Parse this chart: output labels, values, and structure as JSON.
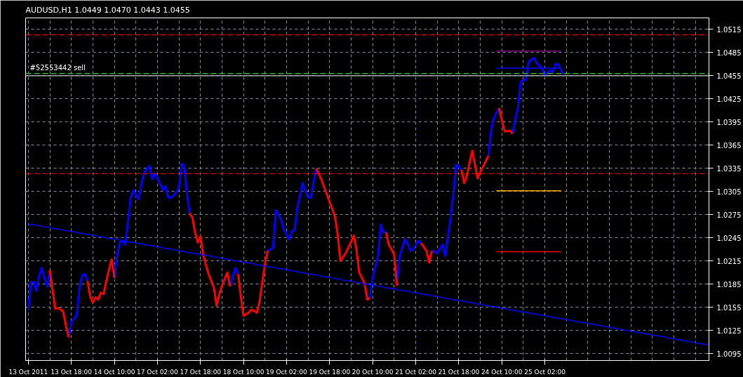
{
  "chart_data": {
    "type": "line",
    "title": "AUDUSD,H1  1.0449 1.0470 1.0443 1.0455",
    "categories": [
      "13 Oct 2011",
      null,
      null,
      null,
      null,
      null,
      null,
      null,
      null,
      null,
      null,
      null,
      null,
      null,
      null,
      null,
      "13 Oct 18:00",
      null,
      null,
      null,
      null,
      null,
      null,
      null,
      null,
      null,
      null,
      null,
      null,
      null,
      null,
      null,
      "14 Oct 10:00",
      null,
      null,
      null,
      null,
      null,
      null,
      null,
      null,
      null,
      null,
      null,
      null,
      null,
      null,
      null,
      "17 Oct 02:00",
      null,
      null,
      null,
      null,
      null,
      null,
      null,
      null,
      null,
      null,
      null,
      null,
      null,
      null,
      null,
      "17 Oct 18:00",
      null,
      null,
      null,
      null,
      null,
      null,
      null,
      null,
      null,
      null,
      null,
      null,
      null,
      null,
      null,
      "18 Oct 10:00",
      null,
      null,
      null,
      null,
      null,
      null,
      null,
      null,
      null,
      null,
      null,
      null,
      null,
      null,
      null,
      "19 Oct 02:00",
      null,
      null,
      null,
      null,
      null,
      null,
      null,
      null,
      null,
      null,
      null,
      null,
      null,
      null,
      null,
      "19 Oct 18:00",
      null,
      null,
      null,
      null,
      null,
      null,
      null,
      null,
      null,
      null,
      null,
      null,
      null,
      null,
      null,
      "20 Oct 10:00",
      null,
      null,
      null,
      null,
      null,
      null,
      null,
      null,
      null,
      null,
      null,
      null,
      null,
      null,
      null,
      "21 Oct 02:00",
      null,
      null,
      null,
      null,
      null,
      null,
      null,
      null,
      null,
      null,
      null,
      null,
      null,
      null,
      null,
      "21 Oct 18:00",
      null,
      null,
      null,
      null,
      null,
      null,
      null,
      null,
      null,
      null,
      null,
      null,
      null,
      null,
      null,
      "24 Oct 10:00",
      null,
      null,
      null,
      null,
      null,
      null,
      null,
      null,
      null,
      null,
      null,
      null,
      null,
      null,
      null,
      "25 Oct 02:00",
      null,
      null,
      null,
      null,
      null,
      null,
      null,
      null,
      null,
      null,
      null,
      null,
      null,
      null,
      null,
      null,
      null,
      null,
      null,
      null,
      null,
      null,
      null,
      null,
      null,
      null,
      null,
      null,
      null,
      null,
      null,
      null,
      null,
      null,
      null,
      null,
      null,
      null,
      null,
      null,
      null,
      null,
      null,
      null,
      null,
      null,
      null,
      null,
      null,
      null,
      null,
      null,
      null,
      null,
      null,
      null,
      null,
      null,
      null,
      null,
      null
    ],
    "series": [
      {
        "color": "#0000ff",
        "values": [
          1.0152,
          1.0187,
          1.0188,
          1.0176,
          1.0195,
          1.0206,
          1.0193,
          1.0182,
          1.0203,
          null,
          null,
          null,
          null,
          null,
          null,
          1.0116,
          1.0136,
          1.014,
          1.0144,
          1.018,
          1.0196,
          1.0198,
          1.0189,
          null,
          null,
          null,
          null,
          null,
          null,
          null,
          null,
          null,
          1.0193,
          1.0222,
          1.0239,
          1.0241,
          1.0236,
          1.0264,
          1.0295,
          1.0307,
          1.0301,
          1.0295,
          1.0314,
          1.0329,
          1.0334,
          1.0338,
          1.0321,
          1.0328,
          1.0322,
          1.0315,
          1.0307,
          1.0312,
          1.0297,
          1.0297,
          1.03,
          1.0304,
          1.031,
          1.0341,
          1.0338,
          1.0301,
          1.0277,
          null,
          null,
          null,
          null,
          null,
          null,
          null,
          null,
          null,
          null,
          null,
          null,
          null,
          null,
          1.0182,
          1.0194,
          1.0206,
          1.0198,
          null,
          null,
          null,
          null,
          null,
          null,
          null,
          null,
          null,
          null,
          1.0228,
          1.023,
          1.0232,
          1.0281,
          1.0275,
          1.0268,
          1.0255,
          1.0249,
          1.0243,
          1.0254,
          1.0255,
          1.0284,
          1.03,
          1.0316,
          1.0306,
          1.0297,
          1.0297,
          1.0316,
          1.0335,
          null,
          null,
          null,
          null,
          null,
          null,
          null,
          null,
          null,
          null,
          null,
          null,
          null,
          null,
          null,
          null,
          null,
          null,
          null,
          1.0167,
          1.0193,
          1.0207,
          1.0221,
          1.0262,
          1.0252,
          1.0252,
          null,
          null,
          null,
          1.0183,
          1.0221,
          1.0232,
          1.0243,
          1.0238,
          1.0228,
          1.023,
          1.0236,
          1.0241,
          1.0238,
          null,
          null,
          null,
          1.0228,
          1.0227,
          1.0225,
          1.0231,
          1.0236,
          1.0221,
          1.0247,
          1.0272,
          1.0301,
          1.034,
          1.0337,
          1.0333,
          null,
          null,
          null,
          null,
          null,
          null,
          null,
          null,
          null,
          1.0351,
          1.0383,
          1.04,
          1.0407,
          1.0413,
          null,
          null,
          null,
          null,
          1.038,
          1.0398,
          1.0413,
          1.0447,
          1.0449,
          1.045,
          1.0473,
          1.0476,
          1.0478,
          1.0471,
          1.0468,
          1.0464,
          1.0456,
          1.0459,
          1.0462,
          1.046,
          1.047,
          1.047,
          1.0462,
          1.0457,
          null,
          null,
          null,
          null,
          null,
          null,
          null,
          null,
          null,
          null,
          null,
          null,
          null,
          null,
          null,
          null,
          null,
          null,
          null,
          null,
          null,
          null,
          null,
          null,
          null,
          null,
          null,
          null,
          null,
          null,
          null,
          null,
          null,
          null,
          null,
          null,
          null,
          null,
          null,
          null,
          null,
          null,
          null,
          null,
          null,
          null,
          null,
          null,
          null,
          null,
          null,
          null,
          null,
          null
        ]
      },
      {
        "color": "#ff0000",
        "values": [
          null,
          null,
          null,
          null,
          null,
          null,
          null,
          null,
          1.0203,
          1.0178,
          1.0153,
          1.0154,
          1.0152,
          1.0149,
          1.0131,
          1.0116,
          null,
          null,
          null,
          null,
          null,
          null,
          1.0189,
          1.0169,
          1.0161,
          1.0168,
          1.0165,
          1.0174,
          1.0172,
          1.0189,
          1.0204,
          1.0217,
          1.0193,
          null,
          null,
          null,
          null,
          null,
          null,
          null,
          null,
          null,
          null,
          null,
          null,
          null,
          null,
          null,
          null,
          null,
          null,
          null,
          null,
          null,
          null,
          null,
          null,
          null,
          null,
          null,
          1.0277,
          1.0271,
          1.0252,
          1.0239,
          1.0247,
          1.0223,
          1.021,
          1.0198,
          1.0189,
          1.018,
          1.0157,
          1.0172,
          1.0183,
          1.0192,
          1.02,
          1.0182,
          null,
          null,
          1.0198,
          1.0169,
          1.0144,
          1.0146,
          1.0148,
          1.0152,
          1.015,
          1.0148,
          1.0163,
          1.0188,
          1.0212,
          1.0228,
          null,
          null,
          null,
          null,
          null,
          null,
          null,
          null,
          null,
          null,
          null,
          null,
          null,
          null,
          null,
          null,
          null,
          1.0335,
          1.0328,
          1.032,
          1.031,
          1.0301,
          1.0291,
          1.0282,
          1.0272,
          1.0249,
          1.0215,
          1.022,
          1.0225,
          1.0233,
          1.024,
          1.0248,
          1.0229,
          1.02,
          1.0193,
          1.0186,
          1.0165,
          1.0167,
          null,
          null,
          null,
          null,
          null,
          1.0252,
          1.0236,
          1.023,
          1.0223,
          1.0183,
          null,
          null,
          null,
          null,
          null,
          null,
          null,
          null,
          1.0238,
          1.0233,
          1.0228,
          1.0213,
          1.0228,
          null,
          null,
          null,
          null,
          null,
          null,
          null,
          null,
          null,
          null,
          1.0333,
          1.0316,
          1.0325,
          1.0342,
          1.0358,
          1.034,
          1.0322,
          1.033,
          1.0337,
          1.0344,
          1.0351,
          null,
          null,
          null,
          1.0413,
          1.0398,
          1.0383,
          1.0383,
          1.0384,
          1.038,
          null,
          null,
          null,
          null,
          null,
          null,
          null,
          null,
          null,
          null,
          null,
          null,
          null,
          null,
          null,
          null,
          null,
          null,
          null,
          null,
          null,
          null,
          null,
          null,
          null,
          null,
          null,
          null,
          null,
          null,
          null,
          null,
          null,
          null,
          null,
          null,
          null,
          null,
          null,
          null,
          null,
          null,
          null,
          null,
          null,
          null,
          null,
          null,
          null,
          null,
          null,
          null,
          null,
          null,
          null,
          null,
          null,
          null,
          null,
          null,
          null,
          null,
          null,
          null,
          null,
          null,
          null,
          null,
          null,
          null,
          null,
          null,
          null
        ]
      },
      {
        "color": "#0000ff",
        "values": [
          1.0263,
          1.0262,
          1.0262,
          1.0261,
          1.0261,
          1.026,
          1.0259,
          1.0259,
          1.0258,
          1.0257,
          1.0257,
          1.0256,
          1.0256,
          1.0255,
          1.0254,
          1.0254,
          1.0253,
          1.0253,
          1.0252,
          1.0251,
          1.0251,
          1.025,
          1.0249,
          1.0249,
          1.0248,
          1.0248,
          1.0247,
          1.0246,
          1.0246,
          1.0245,
          1.0244,
          1.0244,
          1.0243,
          1.0243,
          1.0242,
          1.0241,
          1.0241,
          1.024,
          1.0239,
          1.0239,
          1.0238,
          1.0238,
          1.0237,
          1.0236,
          1.0236,
          1.0235,
          1.0235,
          1.0234,
          1.0233,
          1.0233,
          1.0232,
          1.0231,
          1.0231,
          1.023,
          1.023,
          1.0229,
          1.0228,
          1.0228,
          1.0227,
          1.0226,
          1.0226,
          1.0225,
          1.0225,
          1.0224,
          1.0223,
          1.0223,
          1.0222,
          1.0222,
          1.0221,
          1.022,
          1.022,
          1.0219,
          1.0218,
          1.0218,
          1.0217,
          1.0217,
          1.0216,
          1.0215,
          1.0215,
          1.0214,
          1.0213,
          1.0213,
          1.0212,
          1.0212,
          1.0211,
          1.021,
          1.021,
          1.0209,
          1.0208,
          1.0208,
          1.0207,
          1.0207,
          1.0206,
          1.0205,
          1.0205,
          1.0204,
          1.0204,
          1.0203,
          1.0202,
          1.0202,
          1.0201,
          1.02,
          1.02,
          1.0199,
          1.0198,
          1.0198,
          1.0197,
          1.0197,
          1.0196,
          1.0195,
          1.0195,
          1.0194,
          1.0194,
          1.0193,
          1.0192,
          1.0192,
          1.0191,
          1.019,
          1.019,
          1.0189,
          1.0189,
          1.0188,
          1.0187,
          1.0187,
          1.0186,
          1.0185,
          1.0185,
          1.0184,
          1.0184,
          1.0183,
          1.0182,
          1.0182,
          1.0181,
          1.018,
          1.018,
          1.0179,
          1.0179,
          1.0178,
          1.0177,
          1.0177,
          1.0176,
          1.0176,
          1.0175,
          1.0174,
          1.0174,
          1.0173,
          1.0172,
          1.0172,
          1.0171,
          1.0171,
          1.017,
          1.0169,
          1.0169,
          1.0168,
          1.0167,
          1.0167,
          1.0166,
          1.0166,
          1.0165,
          1.0164,
          1.0164,
          1.0163,
          1.0163,
          1.0162,
          1.0161,
          1.0161,
          1.016,
          1.0159,
          1.0159,
          1.0158,
          1.0157,
          1.0157,
          1.0156,
          1.0156,
          1.0155,
          1.0154,
          1.0154,
          1.0153,
          1.0153,
          1.0152,
          1.0151,
          1.0151,
          1.015,
          1.0149,
          1.0149,
          1.0148,
          1.0148,
          1.0147,
          1.0146,
          1.0146,
          1.0145,
          1.0145,
          1.0144,
          1.0143,
          1.0143,
          1.0142,
          1.0141,
          1.0141,
          1.014,
          1.014,
          1.0139,
          1.0138,
          1.0138,
          1.0137,
          1.0136,
          1.0136,
          1.0135,
          1.0135,
          1.0134,
          1.0133,
          1.0133,
          1.0132,
          1.0132,
          1.0131,
          1.013,
          1.013,
          1.0129,
          1.0128,
          1.0128,
          1.0127,
          1.0126,
          1.0126,
          1.0125,
          1.0125,
          1.0124,
          1.0123,
          1.0123,
          1.0122,
          1.0122,
          1.0121,
          1.012,
          1.012,
          1.0119,
          1.0118,
          1.0118,
          1.0117,
          1.0117,
          1.0116,
          1.0115,
          1.0115,
          1.0114,
          1.0113,
          1.0113,
          1.0112,
          1.0112,
          1.0111,
          1.011,
          1.011,
          1.0109,
          1.0108,
          1.0108,
          1.0107,
          1.0107,
          1.0106
        ]
      },
      {
        "color": "#800080",
        "values": [
          null,
          null,
          null,
          null,
          null,
          null,
          null,
          null,
          null,
          null,
          null,
          null,
          null,
          null,
          null,
          null,
          null,
          null,
          null,
          null,
          null,
          null,
          null,
          null,
          null,
          null,
          null,
          null,
          null,
          null,
          null,
          null,
          null,
          null,
          null,
          null,
          null,
          null,
          null,
          null,
          null,
          null,
          null,
          null,
          null,
          null,
          null,
          null,
          null,
          null,
          null,
          null,
          null,
          null,
          null,
          null,
          null,
          null,
          null,
          null,
          null,
          null,
          null,
          null,
          null,
          null,
          null,
          null,
          null,
          null,
          null,
          null,
          null,
          null,
          null,
          null,
          null,
          null,
          null,
          null,
          null,
          null,
          null,
          null,
          null,
          null,
          null,
          null,
          null,
          null,
          null,
          null,
          null,
          null,
          null,
          null,
          null,
          null,
          null,
          null,
          null,
          null,
          null,
          null,
          null,
          null,
          null,
          null,
          null,
          null,
          null,
          null,
          null,
          null,
          null,
          null,
          null,
          null,
          null,
          null,
          null,
          null,
          null,
          null,
          null,
          null,
          null,
          null,
          null,
          null,
          null,
          null,
          null,
          null,
          null,
          null,
          null,
          null,
          null,
          null,
          null,
          null,
          null,
          null,
          null,
          null,
          null,
          null,
          null,
          null,
          null,
          null,
          null,
          null,
          null,
          null,
          null,
          null,
          null,
          null,
          null,
          null,
          null,
          null,
          null,
          null,
          null,
          null,
          null,
          null,
          null,
          null,
          null,
          null,
          1.0487,
          1.0487,
          1.0487,
          1.0487,
          1.0487,
          1.0487,
          1.0487,
          1.0487,
          1.0487,
          1.0487,
          1.0487,
          1.0487,
          1.0487,
          1.0487,
          1.0487,
          1.0487,
          1.0487,
          1.0487,
          1.0487,
          1.0487,
          1.0487,
          1.0487,
          1.0487,
          1.0487,
          1.0487,
          null,
          null,
          null,
          null,
          null,
          null,
          null,
          null,
          null,
          null,
          null,
          null,
          null,
          null,
          null,
          null,
          null,
          null,
          null,
          null,
          null,
          null,
          null,
          null,
          null,
          null,
          null,
          null,
          null,
          null,
          null,
          null,
          null,
          null,
          null,
          null,
          null,
          null,
          null,
          null,
          null,
          null,
          null,
          null,
          null,
          null,
          null,
          null,
          null,
          null,
          null,
          null,
          null,
          null,
          null
        ]
      },
      {
        "color": "#0000ff",
        "values": [
          null,
          null,
          null,
          null,
          null,
          null,
          null,
          null,
          null,
          null,
          null,
          null,
          null,
          null,
          null,
          null,
          null,
          null,
          null,
          null,
          null,
          null,
          null,
          null,
          null,
          null,
          null,
          null,
          null,
          null,
          null,
          null,
          null,
          null,
          null,
          null,
          null,
          null,
          null,
          null,
          null,
          null,
          null,
          null,
          null,
          null,
          null,
          null,
          null,
          null,
          null,
          null,
          null,
          null,
          null,
          null,
          null,
          null,
          null,
          null,
          null,
          null,
          null,
          null,
          null,
          null,
          null,
          null,
          null,
          null,
          null,
          null,
          null,
          null,
          null,
          null,
          null,
          null,
          null,
          null,
          null,
          null,
          null,
          null,
          null,
          null,
          null,
          null,
          null,
          null,
          null,
          null,
          null,
          null,
          null,
          null,
          null,
          null,
          null,
          null,
          null,
          null,
          null,
          null,
          null,
          null,
          null,
          null,
          null,
          null,
          null,
          null,
          null,
          null,
          null,
          null,
          null,
          null,
          null,
          null,
          null,
          null,
          null,
          null,
          null,
          null,
          null,
          null,
          null,
          null,
          null,
          null,
          null,
          null,
          null,
          null,
          null,
          null,
          null,
          null,
          null,
          null,
          null,
          null,
          null,
          null,
          null,
          null,
          null,
          null,
          null,
          null,
          null,
          null,
          null,
          null,
          null,
          null,
          null,
          null,
          null,
          null,
          null,
          null,
          null,
          null,
          null,
          null,
          null,
          null,
          null,
          null,
          null,
          null,
          1.0465,
          1.0465,
          1.0465,
          1.0465,
          1.0465,
          1.0465,
          1.0465,
          1.0465,
          1.0465,
          1.0465,
          1.0465,
          1.0465,
          1.0465,
          1.0465,
          1.0465,
          1.0465,
          1.0465,
          1.0465,
          1.0465,
          1.0465,
          1.0465,
          1.0465,
          1.0465,
          1.0465,
          1.0465,
          null,
          null,
          null,
          null,
          null,
          null,
          null,
          null,
          null,
          null,
          null,
          null,
          null,
          null,
          null,
          null,
          null,
          null,
          null,
          null,
          null,
          null,
          null,
          null,
          null,
          null,
          null,
          null,
          null,
          null,
          null,
          null,
          null,
          null,
          null,
          null,
          null,
          null,
          null,
          null,
          null,
          null,
          null,
          null,
          null,
          null,
          null,
          null,
          null,
          null,
          null,
          null,
          null,
          null,
          null
        ]
      },
      {
        "color": "#ffa500",
        "values": [
          null,
          null,
          null,
          null,
          null,
          null,
          null,
          null,
          null,
          null,
          null,
          null,
          null,
          null,
          null,
          null,
          null,
          null,
          null,
          null,
          null,
          null,
          null,
          null,
          null,
          null,
          null,
          null,
          null,
          null,
          null,
          null,
          null,
          null,
          null,
          null,
          null,
          null,
          null,
          null,
          null,
          null,
          null,
          null,
          null,
          null,
          null,
          null,
          null,
          null,
          null,
          null,
          null,
          null,
          null,
          null,
          null,
          null,
          null,
          null,
          null,
          null,
          null,
          null,
          null,
          null,
          null,
          null,
          null,
          null,
          null,
          null,
          null,
          null,
          null,
          null,
          null,
          null,
          null,
          null,
          null,
          null,
          null,
          null,
          null,
          null,
          null,
          null,
          null,
          null,
          null,
          null,
          null,
          null,
          null,
          null,
          null,
          null,
          null,
          null,
          null,
          null,
          null,
          null,
          null,
          null,
          null,
          null,
          null,
          null,
          null,
          null,
          null,
          null,
          null,
          null,
          null,
          null,
          null,
          null,
          null,
          null,
          null,
          null,
          null,
          null,
          null,
          null,
          null,
          null,
          null,
          null,
          null,
          null,
          null,
          null,
          null,
          null,
          null,
          null,
          null,
          null,
          null,
          null,
          null,
          null,
          null,
          null,
          null,
          null,
          null,
          null,
          null,
          null,
          null,
          null,
          null,
          null,
          null,
          null,
          null,
          null,
          null,
          null,
          null,
          null,
          null,
          null,
          null,
          null,
          null,
          null,
          null,
          null,
          1.0306,
          1.0306,
          1.0306,
          1.0306,
          1.0306,
          1.0306,
          1.0306,
          1.0306,
          1.0306,
          1.0306,
          1.0306,
          1.0306,
          1.0306,
          1.0306,
          1.0306,
          1.0306,
          1.0306,
          1.0306,
          1.0306,
          1.0306,
          1.0306,
          1.0306,
          1.0306,
          1.0306,
          1.0306,
          null,
          null,
          null,
          null,
          null,
          null,
          null,
          null,
          null,
          null,
          null,
          null,
          null,
          null,
          null,
          null,
          null,
          null,
          null,
          null,
          null,
          null,
          null,
          null,
          null,
          null,
          null,
          null,
          null,
          null,
          null,
          null,
          null,
          null,
          null,
          null,
          null,
          null,
          null,
          null,
          null,
          null,
          null,
          null,
          null,
          null,
          null,
          null,
          null,
          null,
          null,
          null,
          null,
          null,
          null
        ]
      },
      {
        "color": "#ff0000",
        "values": [
          null,
          null,
          null,
          null,
          null,
          null,
          null,
          null,
          null,
          null,
          null,
          null,
          null,
          null,
          null,
          null,
          null,
          null,
          null,
          null,
          null,
          null,
          null,
          null,
          null,
          null,
          null,
          null,
          null,
          null,
          null,
          null,
          null,
          null,
          null,
          null,
          null,
          null,
          null,
          null,
          null,
          null,
          null,
          null,
          null,
          null,
          null,
          null,
          null,
          null,
          null,
          null,
          null,
          null,
          null,
          null,
          null,
          null,
          null,
          null,
          null,
          null,
          null,
          null,
          null,
          null,
          null,
          null,
          null,
          null,
          null,
          null,
          null,
          null,
          null,
          null,
          null,
          null,
          null,
          null,
          null,
          null,
          null,
          null,
          null,
          null,
          null,
          null,
          null,
          null,
          null,
          null,
          null,
          null,
          null,
          null,
          null,
          null,
          null,
          null,
          null,
          null,
          null,
          null,
          null,
          null,
          null,
          null,
          null,
          null,
          null,
          null,
          null,
          null,
          null,
          null,
          null,
          null,
          null,
          null,
          null,
          null,
          null,
          null,
          null,
          null,
          null,
          null,
          null,
          null,
          null,
          null,
          null,
          null,
          null,
          null,
          null,
          null,
          null,
          null,
          null,
          null,
          null,
          null,
          null,
          null,
          null,
          null,
          null,
          null,
          null,
          null,
          null,
          null,
          null,
          null,
          null,
          null,
          null,
          null,
          null,
          null,
          null,
          null,
          null,
          null,
          null,
          null,
          null,
          null,
          null,
          null,
          null,
          null,
          1.0227,
          1.0227,
          1.0227,
          1.0227,
          1.0227,
          1.0227,
          1.0227,
          1.0227,
          1.0227,
          1.0227,
          1.0227,
          1.0227,
          1.0227,
          1.0227,
          1.0227,
          1.0227,
          1.0227,
          1.0227,
          1.0227,
          1.0227,
          1.0227,
          1.0227,
          1.0227,
          1.0227,
          1.0227,
          null,
          null,
          null,
          null,
          null,
          null,
          null,
          null,
          null,
          null,
          null,
          null,
          null,
          null,
          null,
          null,
          null,
          null,
          null,
          null,
          null,
          null,
          null,
          null,
          null,
          null,
          null,
          null,
          null,
          null,
          null,
          null,
          null,
          null,
          null,
          null,
          null,
          null,
          null,
          null,
          null,
          null,
          null,
          null,
          null,
          null,
          null,
          null,
          null,
          null,
          null,
          null,
          null,
          null,
          null
        ]
      }
    ],
    "ref_lines": [
      {
        "axis": "y",
        "value": 1.0508,
        "color": "#ff0000",
        "line_style": "dashed"
      },
      {
        "axis": "y",
        "value": 1.0458,
        "color": "#32cd32",
        "line_style": "dashed",
        "label": "#52553442 sell"
      },
      {
        "axis": "y",
        "value": 1.0455,
        "color": "#c0c0c0",
        "line_style": "solid"
      },
      {
        "axis": "y",
        "value": 1.0328,
        "color": "#ff0000",
        "line_style": "dashed"
      }
    ],
    "ylim": [
      1.0086,
      1.053
    ],
    "yticks": [
      1.0095,
      1.0125,
      1.0155,
      1.0185,
      1.0215,
      1.0245,
      1.0275,
      1.0305,
      1.0335,
      1.0365,
      1.0395,
      1.0425,
      1.0455,
      1.0485,
      1.0515
    ],
    "grid": true
  }
}
